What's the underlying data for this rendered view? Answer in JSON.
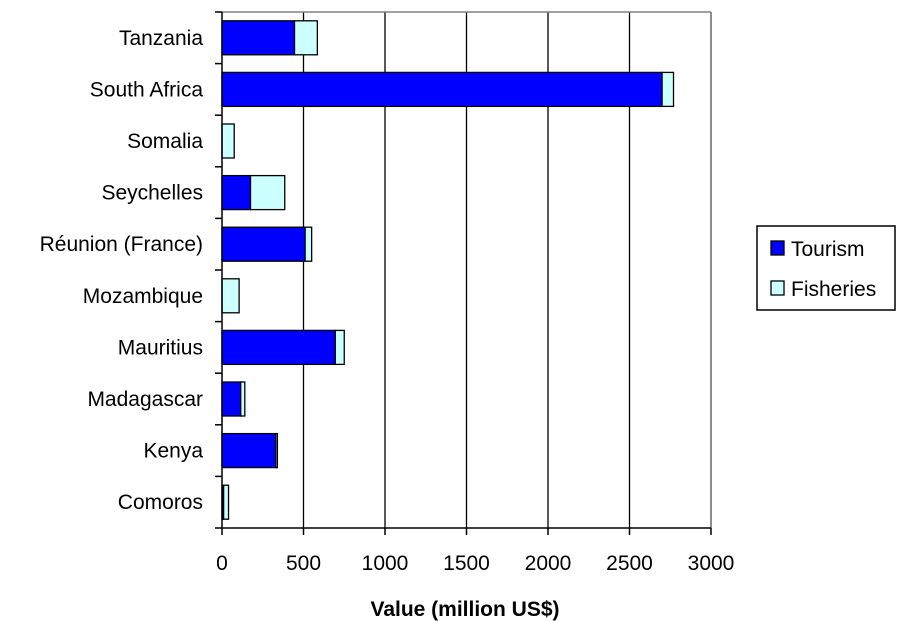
{
  "chart_data": {
    "type": "bar",
    "orientation": "horizontal",
    "stacked": true,
    "categories": [
      "Tanzania",
      "South Africa",
      "Somalia",
      "Seychelles",
      "Réunion (France)",
      "Mozambique",
      "Mauritius",
      "Madagascar",
      "Kenya",
      "Comoros"
    ],
    "series": [
      {
        "name": "Tourism",
        "color": "#0000ff",
        "values": [
          445,
          2700,
          0,
          175,
          510,
          0,
          695,
          115,
          330,
          10
        ]
      },
      {
        "name": "Fisheries",
        "color": "#ccffff",
        "values": [
          140,
          70,
          75,
          210,
          40,
          105,
          55,
          25,
          10,
          30
        ]
      }
    ],
    "xlabel": "Value (million US$)",
    "ylabel": "",
    "xlim": [
      0,
      3000
    ],
    "xticks": [
      0,
      500,
      1000,
      1500,
      2000,
      2500,
      3000
    ],
    "grid": "vertical",
    "legend_position": "right"
  }
}
